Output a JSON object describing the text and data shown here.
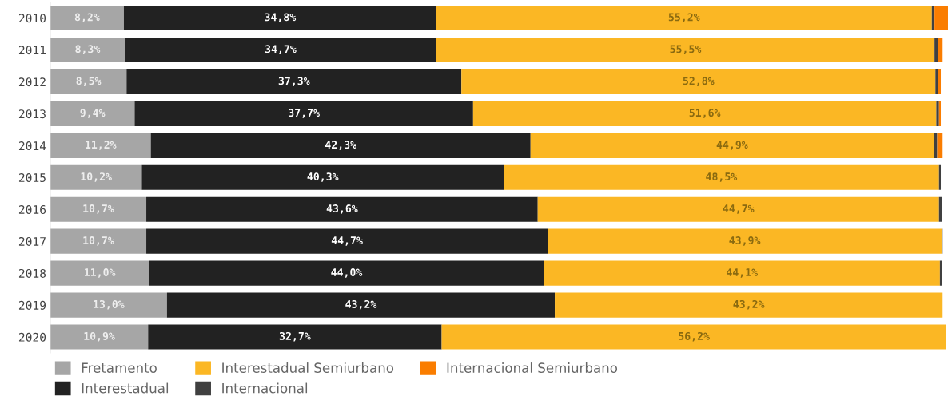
{
  "chart_data": {
    "type": "bar",
    "orientation": "horizontal",
    "stacked": true,
    "categories": [
      "2010",
      "2011",
      "2012",
      "2013",
      "2014",
      "2015",
      "2016",
      "2017",
      "2018",
      "2019",
      "2020"
    ],
    "xlim": [
      0,
      100
    ],
    "tick_labels": "y",
    "grid": false,
    "legend": "bottom",
    "series": [
      {
        "name": "Fretamento",
        "color": "#a6a6a6",
        "values": [
          8.2,
          8.3,
          8.5,
          9.4,
          11.2,
          10.2,
          10.7,
          10.7,
          11.0,
          13.0,
          10.9
        ],
        "value_labels": [
          "8,2%",
          "8,3%",
          "8,5%",
          "9,4%",
          "11,2%",
          "10,2%",
          "10,7%",
          "10,7%",
          "11,0%",
          "13,0%",
          "10,9%"
        ]
      },
      {
        "name": "Interestadual",
        "color": "#222222",
        "values": [
          34.8,
          34.7,
          37.3,
          37.7,
          42.3,
          40.3,
          43.6,
          44.7,
          44.0,
          43.2,
          32.7
        ],
        "value_labels": [
          "34,8%",
          "34,7%",
          "37,3%",
          "37,7%",
          "42,3%",
          "40,3%",
          "43,6%",
          "44,7%",
          "44,0%",
          "43,2%",
          "32,7%"
        ]
      },
      {
        "name": "Interestadual Semiurbano",
        "color": "#fbb724",
        "values": [
          55.2,
          55.5,
          52.8,
          51.6,
          44.9,
          48.5,
          44.7,
          43.9,
          44.1,
          43.2,
          56.2
        ],
        "value_labels": [
          "55,2%",
          "55,5%",
          "52,8%",
          "51,6%",
          "44,9%",
          "48,5%",
          "44,7%",
          "43,9%",
          "44,1%",
          "43,2%",
          "56,2%"
        ]
      },
      {
        "name": "Internacional",
        "color": "#404040",
        "values": [
          0.3,
          0.4,
          0.3,
          0.3,
          0.4,
          0.2,
          0.3,
          0.1,
          0.2,
          0,
          0
        ]
      },
      {
        "name": "Internacional Semiurbano",
        "color": "#fa7d00",
        "values": [
          1.5,
          0.5,
          0.3,
          0.2,
          0.6,
          0,
          0,
          0,
          0,
          0,
          0
        ]
      }
    ]
  }
}
